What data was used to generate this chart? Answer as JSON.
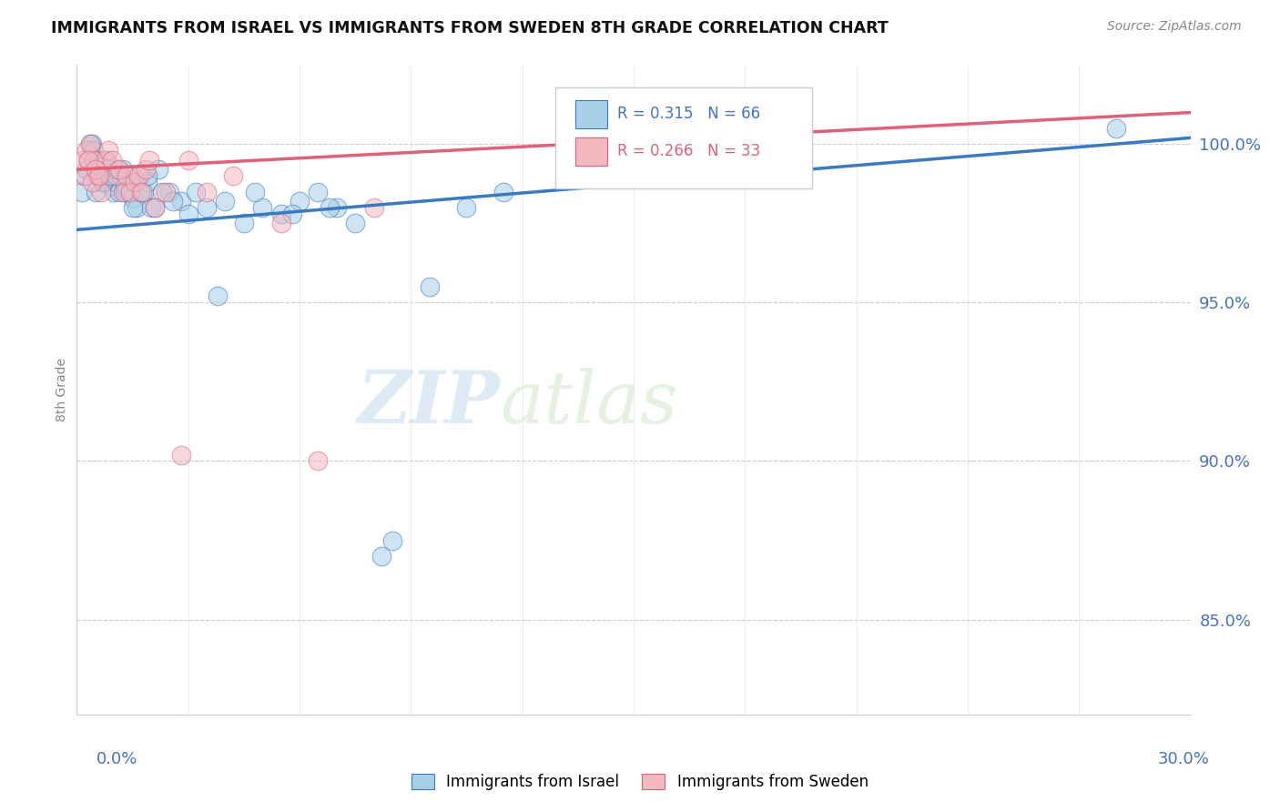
{
  "title": "IMMIGRANTS FROM ISRAEL VS IMMIGRANTS FROM SWEDEN 8TH GRADE CORRELATION CHART",
  "source": "Source: ZipAtlas.com",
  "ylabel": "8th Grade",
  "xlim": [
    0.0,
    30.0
  ],
  "ylim": [
    82.0,
    102.5
  ],
  "yticks": [
    85.0,
    90.0,
    95.0,
    100.0
  ],
  "ytick_labels": [
    "85.0%",
    "90.0%",
    "95.0%",
    "100.0%"
  ],
  "color_israel": "#a8cfe8",
  "color_sweden": "#f4b8c1",
  "color_israel_line": "#3a7abf",
  "color_sweden_line": "#e0607a",
  "legend_R_israel": "R = 0.315",
  "legend_N_israel": "N = 66",
  "legend_R_sweden": "R = 0.266",
  "legend_N_sweden": "N = 33",
  "watermark_zip": "ZIP",
  "watermark_atlas": "atlas",
  "israel_x": [
    0.15,
    0.2,
    0.25,
    0.3,
    0.35,
    0.4,
    0.45,
    0.5,
    0.55,
    0.6,
    0.65,
    0.7,
    0.75,
    0.8,
    0.85,
    0.9,
    0.95,
    1.0,
    1.05,
    1.1,
    1.15,
    1.2,
    1.25,
    1.3,
    1.4,
    1.5,
    1.6,
    1.7,
    1.8,
    1.9,
    2.0,
    2.2,
    2.5,
    2.8,
    3.2,
    3.8,
    4.5,
    5.0,
    5.5,
    6.0,
    6.5,
    7.0,
    7.5,
    8.2,
    9.5,
    10.5,
    11.5,
    0.5,
    0.7,
    0.9,
    1.1,
    1.3,
    1.5,
    1.7,
    1.9,
    2.1,
    2.3,
    2.6,
    3.0,
    3.5,
    4.0,
    4.8,
    5.8,
    6.8,
    8.5,
    28.0
  ],
  "israel_y": [
    98.5,
    99.0,
    99.2,
    99.5,
    100.0,
    100.0,
    99.8,
    99.5,
    99.0,
    99.5,
    99.3,
    98.8,
    99.0,
    99.5,
    99.2,
    98.7,
    99.0,
    98.5,
    98.8,
    99.0,
    98.5,
    99.0,
    99.2,
    98.7,
    98.5,
    98.3,
    98.0,
    99.0,
    98.5,
    98.8,
    98.0,
    99.2,
    98.5,
    98.2,
    98.5,
    95.2,
    97.5,
    98.0,
    97.8,
    98.2,
    98.5,
    98.0,
    97.5,
    87.0,
    95.5,
    98.0,
    98.5,
    98.5,
    98.8,
    99.0,
    99.2,
    98.5,
    98.0,
    98.5,
    99.0,
    98.0,
    98.5,
    98.2,
    97.8,
    98.0,
    98.2,
    98.5,
    97.8,
    98.0,
    87.5,
    100.5
  ],
  "sweden_x": [
    0.15,
    0.25,
    0.35,
    0.45,
    0.55,
    0.65,
    0.75,
    0.85,
    0.95,
    1.05,
    1.15,
    1.25,
    1.35,
    1.45,
    1.55,
    1.65,
    1.75,
    1.85,
    1.95,
    2.1,
    2.4,
    2.8,
    3.5,
    4.2,
    5.5,
    8.0,
    3.0
  ],
  "sweden_y": [
    99.5,
    99.8,
    100.0,
    99.5,
    99.0,
    98.5,
    99.5,
    99.8,
    99.5,
    99.0,
    99.2,
    98.5,
    99.0,
    98.5,
    98.8,
    99.0,
    98.5,
    99.2,
    99.5,
    98.0,
    98.5,
    90.2,
    98.5,
    99.0,
    97.5,
    98.0,
    99.5
  ],
  "sweden_extra_x": [
    0.2,
    0.3,
    0.4,
    0.5,
    0.6,
    6.5
  ],
  "sweden_extra_y": [
    99.0,
    99.5,
    98.8,
    99.2,
    99.0,
    90.0
  ]
}
